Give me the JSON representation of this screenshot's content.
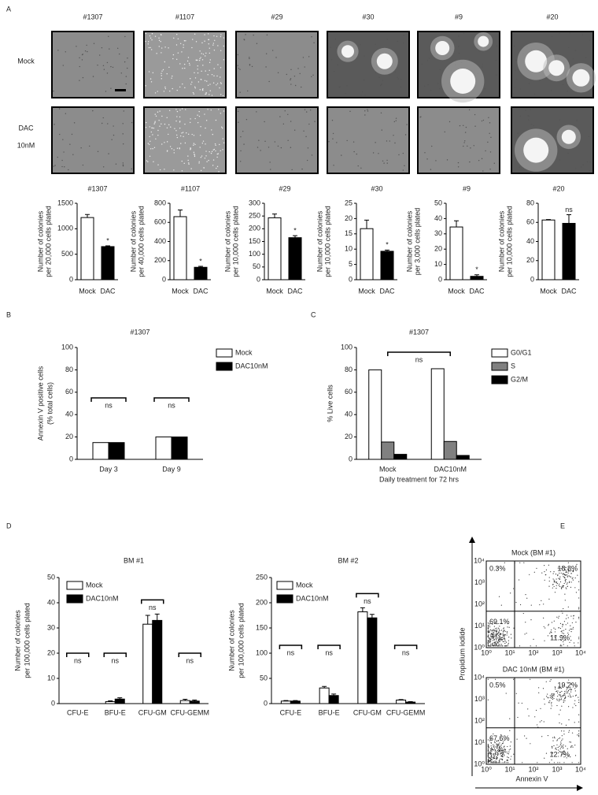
{
  "panel_labels": [
    "A",
    "B",
    "C",
    "D",
    "E"
  ],
  "micrographs": {
    "columns": [
      "#1307",
      "#1107",
      "#29",
      "#30",
      "#9",
      "#20"
    ],
    "rows": [
      [
        "Mock"
      ],
      [
        "DAC",
        "10nM"
      ]
    ]
  },
  "chart_data": [
    {
      "type": "bar",
      "title": "#1307",
      "ylabel": [
        "Number of colonies",
        "per 20,000 cells plated"
      ],
      "categories": [
        "Mock",
        "DAC"
      ],
      "values": [
        1220,
        650
      ],
      "errors": [
        60,
        15
      ],
      "colors": [
        "#ffffff",
        "#000000"
      ],
      "ylim": [
        0,
        1500
      ],
      "yticks": [
        0,
        500,
        1000,
        1500
      ],
      "annotations": [
        null,
        "*"
      ]
    },
    {
      "type": "bar",
      "title": "#1107",
      "ylabel": [
        "Number of colonies",
        "per 40,000 cells plated"
      ],
      "categories": [
        "Mock",
        "DAC"
      ],
      "values": [
        660,
        130
      ],
      "errors": [
        70,
        10
      ],
      "colors": [
        "#ffffff",
        "#000000"
      ],
      "ylim": [
        0,
        800
      ],
      "yticks": [
        0,
        200,
        400,
        600,
        800
      ],
      "annotations": [
        null,
        "*"
      ]
    },
    {
      "type": "bar",
      "title": "#29",
      "ylabel": [
        "Number of colonies",
        "per 10,000 cells plated"
      ],
      "categories": [
        "Mock",
        "DAC"
      ],
      "values": [
        243,
        165
      ],
      "errors": [
        15,
        8
      ],
      "colors": [
        "#ffffff",
        "#000000"
      ],
      "ylim": [
        0,
        300
      ],
      "yticks": [
        0,
        50,
        100,
        150,
        200,
        250,
        300
      ],
      "annotations": [
        null,
        "*"
      ]
    },
    {
      "type": "bar",
      "title": "#30",
      "ylabel": [
        "Number of colonies",
        "per 10,000 cells plated"
      ],
      "categories": [
        "Mock",
        "DAC"
      ],
      "values": [
        16.7,
        9.3
      ],
      "errors": [
        2.8,
        0.4
      ],
      "colors": [
        "#ffffff",
        "#000000"
      ],
      "ylim": [
        0,
        25
      ],
      "yticks": [
        0,
        5,
        10,
        15,
        20,
        25
      ],
      "annotations": [
        null,
        "*"
      ]
    },
    {
      "type": "bar",
      "title": "#9",
      "ylabel": [
        "Number of colonies",
        "per 3,000 cells plated"
      ],
      "categories": [
        "Mock",
        "DAC"
      ],
      "values": [
        34.5,
        2.2
      ],
      "errors": [
        4,
        1
      ],
      "colors": [
        "#ffffff",
        "#000000"
      ],
      "ylim": [
        0,
        50
      ],
      "yticks": [
        0,
        10,
        20,
        30,
        40,
        50
      ],
      "annotations": [
        null,
        "*"
      ]
    },
    {
      "type": "bar",
      "title": "#20",
      "ylabel": [
        "Number of colonies",
        "per 10,000 cells plated"
      ],
      "categories": [
        "Mock",
        "DAC"
      ],
      "values": [
        62.5,
        59
      ],
      "errors": [
        0.5,
        9
      ],
      "colors": [
        "#ffffff",
        "#000000"
      ],
      "ylim": [
        0,
        80
      ],
      "yticks": [
        0,
        20,
        40,
        60,
        80
      ],
      "annotations": [
        null,
        "ns"
      ]
    },
    {
      "type": "bar",
      "title": "#1307",
      "ylabel": [
        "Annexin V positive cells",
        "(% total cells)"
      ],
      "categories": [
        "Day 3",
        "Day 9"
      ],
      "series": [
        {
          "name": "Mock",
          "color": "#ffffff",
          "values": [
            15,
            20
          ]
        },
        {
          "name": "DAC10nM",
          "color": "#000000",
          "values": [
            15,
            20
          ]
        }
      ],
      "ylim": [
        0,
        100
      ],
      "yticks": [
        0,
        20,
        40,
        60,
        80,
        100
      ],
      "annotations": [
        "ns",
        "ns"
      ]
    },
    {
      "type": "bar",
      "title": "#1307",
      "ylabel": [
        "% Live cells"
      ],
      "xlabel": "Daily treatment for 72 hrs",
      "categories": [
        "Mock",
        "DAC10nM"
      ],
      "series": [
        {
          "name": "G0/G1",
          "color": "#ffffff",
          "values": [
            80,
            81
          ]
        },
        {
          "name": "S",
          "color": "#808080",
          "values": [
            15.5,
            16
          ]
        },
        {
          "name": "G2/M",
          "color": "#000000",
          "values": [
            4.5,
            3.5
          ]
        }
      ],
      "ylim": [
        0,
        100
      ],
      "yticks": [
        0,
        20,
        40,
        60,
        80,
        100
      ],
      "annotations": [
        "ns"
      ]
    },
    {
      "type": "bar",
      "title": "BM #1",
      "ylabel": [
        "Number of colonies",
        "per 100,000 cells plated"
      ],
      "categories": [
        "CFU-E",
        "BFU-E",
        "CFU-GM",
        "CFU-GEMM"
      ],
      "series": [
        {
          "name": "Mock",
          "color": "#ffffff",
          "values": [
            0,
            0.8,
            31.5,
            1.2
          ],
          "errors": [
            0,
            0.3,
            3.5,
            0.5
          ]
        },
        {
          "name": "DAC10nM",
          "color": "#000000",
          "values": [
            0,
            1.8,
            33,
            1
          ],
          "errors": [
            0,
            0.5,
            2.5,
            0.4
          ]
        }
      ],
      "ylim": [
        0,
        50
      ],
      "yticks": [
        0,
        10,
        20,
        30,
        40,
        50
      ],
      "annotations": [
        "ns",
        "ns",
        "ns",
        "ns"
      ]
    },
    {
      "type": "bar",
      "title": "BM #2",
      "ylabel": [
        "Number of colonies",
        "per 100,000 cells plated"
      ],
      "categories": [
        "CFU-E",
        "BFU-E",
        "CFU-GM",
        "CFU-GEMM"
      ],
      "series": [
        {
          "name": "Mock",
          "color": "#ffffff",
          "values": [
            5,
            31,
            182,
            7
          ],
          "errors": [
            1,
            3,
            8,
            1
          ]
        },
        {
          "name": "DAC10nM",
          "color": "#000000",
          "values": [
            5,
            16,
            170,
            3
          ],
          "errors": [
            1,
            3,
            7,
            1
          ]
        }
      ],
      "ylim": [
        0,
        250
      ],
      "yticks": [
        0,
        50,
        100,
        150,
        200,
        250
      ],
      "annotations": [
        "ns",
        "ns",
        "ns",
        "ns"
      ]
    }
  ],
  "flow": {
    "ylabel": "Propidium iodide",
    "xlabel": "Annexin V",
    "ticks": [
      "10⁰",
      "10¹",
      "10²",
      "10³",
      "10⁴"
    ],
    "plots": [
      {
        "title": "Mock (BM #1)",
        "quadrants": [
          "0.3%",
          "18.8%",
          "69.1%",
          "11.9%"
        ]
      },
      {
        "title": "DAC 10nM (BM #1)",
        "quadrants": [
          "0.5%",
          "19.2%",
          "67.6%",
          "12.7%"
        ]
      }
    ]
  }
}
